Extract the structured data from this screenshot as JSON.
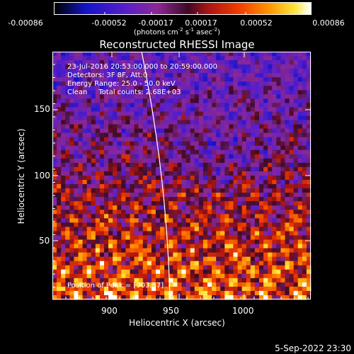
{
  "chart_data": {
    "type": "heatmap",
    "title": "Reconstructed RHESSI Image",
    "xlabel": "Heliocentric X (arcsec)",
    "ylabel": "Heliocentric Y (arcsec)",
    "xlim": [
      862,
      1042
    ],
    "ylim": [
      2,
      182
    ],
    "xticks": [
      900,
      950,
      1000
    ],
    "yticks": [
      50,
      100,
      150
    ],
    "colorbar": {
      "ticks": [
        "-0.00086",
        "-0.00052",
        "-0.00017",
        "0.00017",
        "0.00052",
        "0.00086"
      ],
      "unit_prefix": "(photons cm",
      "unit_exp1": "-2",
      "unit_mid": " s",
      "unit_exp2": "-1",
      "unit_after": " asec",
      "unit_exp3": "-2",
      "unit_suffix": ")",
      "min": -0.00086,
      "max": 0.00086
    },
    "annotations": [
      "23-Jul-2016 20:53:00.000 to 20:59:00.000",
      "Detectors: 3F 8F, Att:0",
      "Energy Range: 25.0 - 50.0 keV",
      "Clean     Total counts: 2.68E+03"
    ],
    "peak_text": "Position of Peak = [903,57]",
    "limb_color": "#ffffff"
  },
  "footer": {
    "date": "5-Sep-2022 23:30"
  }
}
